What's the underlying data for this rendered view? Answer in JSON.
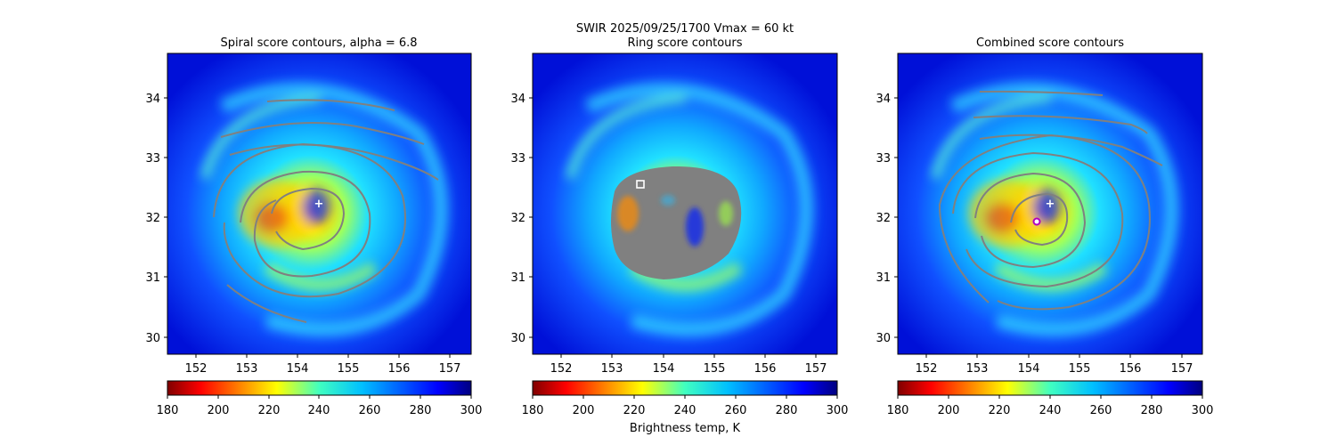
{
  "figure": {
    "suptitle_line1": "SWIR  2025/09/25/1700    Vmax = 60 kt",
    "colorbar_label": "Brightness temp, K"
  },
  "chart_data": [
    {
      "type": "heatmap",
      "title": "Spiral score contours, alpha =  6.8",
      "xlim": [
        151.4,
        157.35
      ],
      "ylim": [
        29.7,
        34.75
      ],
      "xticks": [
        152,
        153,
        154,
        155,
        156,
        157
      ],
      "yticks": [
        30,
        31,
        32,
        33,
        34
      ],
      "colormap": "jet_r",
      "colorbar": {
        "range": [
          180,
          300
        ],
        "ticks": [
          180,
          200,
          220,
          240,
          260,
          280,
          300
        ]
      },
      "center_marker": {
        "symbol": "+",
        "x": 154.35,
        "y": 32.23
      },
      "contour_color": "#808080"
    },
    {
      "type": "heatmap",
      "title": "Ring score contours",
      "xlim": [
        151.4,
        157.35
      ],
      "ylim": [
        29.7,
        34.75
      ],
      "xticks": [
        152,
        153,
        154,
        155,
        156,
        157
      ],
      "yticks": [
        30,
        31,
        32,
        33,
        34
      ],
      "colormap": "jet_r",
      "colorbar": {
        "range": [
          180,
          300
        ],
        "ticks": [
          180,
          200,
          220,
          240,
          260,
          280,
          300
        ]
      },
      "square_marker": {
        "symbol": "square",
        "x": 153.5,
        "y": 32.56
      },
      "ring_region": {
        "x_range": [
          153.0,
          155.45
        ],
        "y_range": [
          31.0,
          32.82
        ]
      }
    },
    {
      "type": "heatmap",
      "title": "Combined score contours",
      "xlim": [
        151.4,
        157.35
      ],
      "ylim": [
        29.7,
        34.75
      ],
      "xticks": [
        152,
        153,
        154,
        155,
        156,
        157
      ],
      "yticks": [
        30,
        31,
        32,
        33,
        34
      ],
      "colormap": "jet_r",
      "colorbar": {
        "range": [
          180,
          300
        ],
        "ticks": [
          180,
          200,
          220,
          240,
          260,
          280,
          300
        ]
      },
      "center_marker": {
        "symbol": "+",
        "x": 154.35,
        "y": 32.23
      },
      "circle_marker": {
        "symbol": "circle",
        "x": 154.12,
        "y": 31.94,
        "color": "#b000c0"
      },
      "contour_color": "#808080"
    }
  ]
}
